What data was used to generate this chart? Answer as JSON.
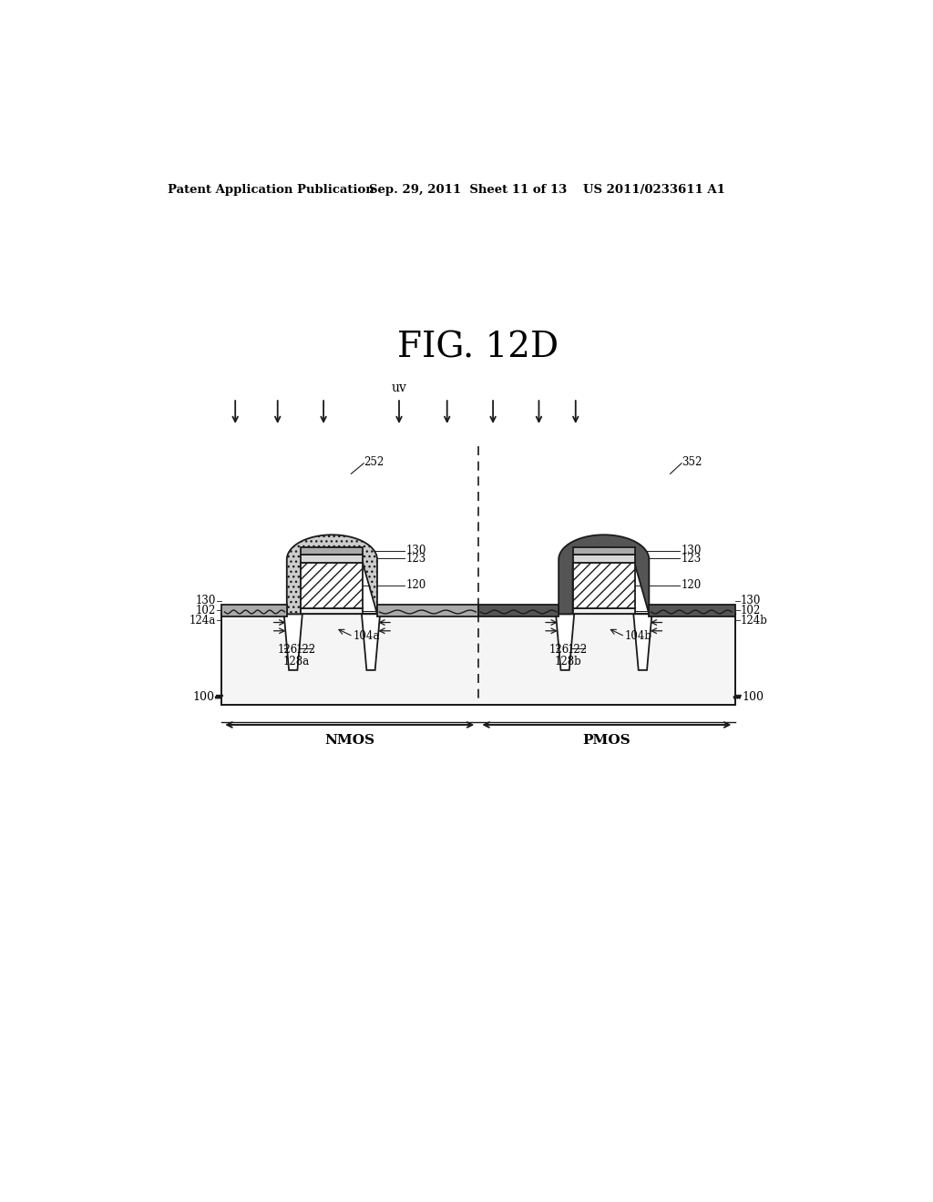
{
  "title": "FIG. 12D",
  "header_left": "Patent Application Publication",
  "header_mid": "Sep. 29, 2011  Sheet 11 of 13",
  "header_right": "US 2011/0233611 A1",
  "uv_label": "uv",
  "nmos_label": "NMOS",
  "pmos_label": "PMOS",
  "bg_color": "#ffffff",
  "line_color": "#1a1a1a",
  "nmos_spacer_fc": "#cccccc",
  "pmos_spacer_fc": "#555555",
  "poly_fc": "#ffffff",
  "cap_fc": "#d8d8d8",
  "top_fc": "#aaaaaa",
  "oxide_fc": "#eeeeee",
  "silicide_nmos_fc": "#aaaaaa",
  "silicide_pmos_fc": "#444444",
  "substrate_fc": "#f5f5f5"
}
